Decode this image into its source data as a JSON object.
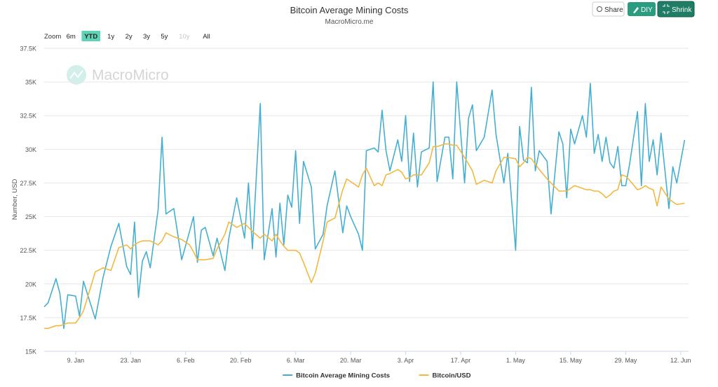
{
  "toolbar": {
    "share": "Share",
    "diy": "DIY",
    "shrink": "Shrink"
  },
  "range_selector": {
    "label": "Zoom",
    "options": [
      "6m",
      "YTD",
      "1y",
      "2y",
      "3y",
      "5y",
      "10y",
      "All"
    ],
    "selected": 1,
    "disabled": [
      6
    ]
  },
  "chart_data": {
    "type": "line",
    "title": "Bitcoin Average Mining Costs",
    "subtitle": "MacroMicro.me",
    "watermark": "MacroMicro",
    "y_label": "Number, USD",
    "grid": true,
    "legend": "bottom",
    "xlim": [
      1,
      165
    ],
    "ylim": [
      15000,
      37500
    ],
    "xticks": [
      {
        "value": 9,
        "label": "9. Jan"
      },
      {
        "value": 23,
        "label": "23. Jan"
      },
      {
        "value": 37,
        "label": "6. Feb"
      },
      {
        "value": 51,
        "label": "20. Feb"
      },
      {
        "value": 65,
        "label": "6. Mar"
      },
      {
        "value": 79,
        "label": "20. Mar"
      },
      {
        "value": 93,
        "label": "3. Apr"
      },
      {
        "value": 107,
        "label": "17. Apr"
      },
      {
        "value": 121,
        "label": "1. May"
      },
      {
        "value": 135,
        "label": "15. May"
      },
      {
        "value": 149,
        "label": "29. May"
      },
      {
        "value": 163,
        "label": "12. Jun"
      }
    ],
    "yticks": [
      {
        "value": 15000,
        "label": "15K"
      },
      {
        "value": 17500,
        "label": "17.5K"
      },
      {
        "value": 20000,
        "label": "20K"
      },
      {
        "value": 22500,
        "label": "22.5K"
      },
      {
        "value": 25000,
        "label": "25K"
      },
      {
        "value": 27500,
        "label": "27.5K"
      },
      {
        "value": 30000,
        "label": "30K"
      },
      {
        "value": 32500,
        "label": "32.5K"
      },
      {
        "value": 35000,
        "label": "35K"
      },
      {
        "value": 37500,
        "label": "37.5K"
      }
    ],
    "x": [
      1,
      2,
      4,
      5,
      6,
      7,
      9,
      10,
      11,
      14,
      16,
      18,
      20,
      22,
      23,
      24,
      25,
      26,
      27,
      28,
      30,
      31,
      32,
      34,
      36,
      38,
      39,
      40,
      41,
      42,
      44,
      45,
      47,
      48,
      50,
      52,
      53,
      54,
      56,
      57,
      59,
      60,
      61,
      62,
      63,
      64,
      65,
      66,
      67,
      69,
      70,
      72,
      73,
      75,
      77,
      78,
      79,
      81,
      82,
      83,
      85,
      86,
      87,
      88,
      89,
      91,
      92,
      93,
      94,
      95,
      96,
      97,
      99,
      100,
      101,
      103,
      104,
      105,
      106,
      108,
      109,
      110,
      111,
      113,
      115,
      116,
      118,
      119,
      121,
      122,
      123,
      124,
      125,
      126,
      127,
      129,
      130,
      132,
      133,
      134,
      135,
      136,
      138,
      139,
      140,
      141,
      142,
      143,
      144,
      145,
      146,
      147,
      148,
      149,
      150,
      152,
      153,
      154,
      155,
      156,
      157,
      158,
      160,
      161,
      162,
      164
    ],
    "series": [
      {
        "name": "Bitcoin Average Mining Costs",
        "color": "#45afd2",
        "values": [
          18300,
          18600,
          20400,
          19300,
          16700,
          19200,
          19100,
          17600,
          20200,
          17400,
          20500,
          22800,
          24500,
          21300,
          20700,
          24600,
          19000,
          21700,
          22400,
          21200,
          25500,
          30900,
          25200,
          25600,
          21800,
          23900,
          25000,
          21600,
          24000,
          24200,
          22100,
          23400,
          21000,
          23400,
          26400,
          23400,
          27500,
          22600,
          33400,
          21800,
          25600,
          22000,
          26000,
          22900,
          26600,
          25700,
          29900,
          24500,
          29100,
          27200,
          22600,
          23700,
          25800,
          28400,
          23800,
          25800,
          25000,
          23700,
          22500,
          29900,
          30100,
          29800,
          32900,
          29900,
          28400,
          30700,
          29100,
          32500,
          27600,
          31200,
          27200,
          29800,
          30100,
          35000,
          27600,
          30900,
          30900,
          27800,
          35000,
          27500,
          32300,
          33300,
          29900,
          30900,
          34400,
          31100,
          27500,
          29700,
          22500,
          31700,
          29200,
          29000,
          34600,
          28400,
          29900,
          29100,
          25200,
          31300,
          30400,
          26400,
          31500,
          30400,
          32500,
          30900,
          34900,
          29700,
          31100,
          29100,
          30900,
          29000,
          28600,
          30200,
          27300,
          27300,
          28900,
          32800,
          27300,
          33400,
          29100,
          30700,
          28100,
          31200,
          25600,
          28700,
          27500,
          30700
        ]
      },
      {
        "name": "Bitcoin/USD",
        "color": "#f2b840",
        "values": [
          16700,
          16700,
          16900,
          16900,
          17000,
          17100,
          17100,
          17500,
          18000,
          20900,
          21200,
          21000,
          22700,
          22900,
          22600,
          22900,
          23100,
          23200,
          23200,
          23200,
          22900,
          23200,
          23800,
          23500,
          23300,
          22900,
          22400,
          21800,
          21800,
          21800,
          21900,
          22600,
          23700,
          24600,
          24200,
          24500,
          24200,
          23900,
          23400,
          23700,
          23200,
          23700,
          23200,
          22800,
          22500,
          22500,
          22500,
          22300,
          21600,
          20100,
          20800,
          23200,
          24600,
          24900,
          27000,
          27800,
          27600,
          27200,
          28100,
          28600,
          27300,
          27500,
          27300,
          28100,
          28200,
          28500,
          28300,
          27800,
          27900,
          28100,
          28100,
          28100,
          29000,
          30200,
          30200,
          30400,
          30400,
          30300,
          30300,
          29400,
          28900,
          28400,
          27400,
          27700,
          27500,
          28400,
          29400,
          29400,
          29300,
          28700,
          29000,
          29400,
          29300,
          28900,
          28500,
          27800,
          27500,
          26900,
          26900,
          26900,
          27100,
          27300,
          27100,
          27000,
          27000,
          26900,
          26900,
          26700,
          26400,
          26600,
          26900,
          27000,
          28100,
          28000,
          27700,
          27000,
          27100,
          27300,
          27100,
          27000,
          25800,
          27200,
          26300,
          26100,
          25900,
          26000
        ]
      }
    ]
  }
}
